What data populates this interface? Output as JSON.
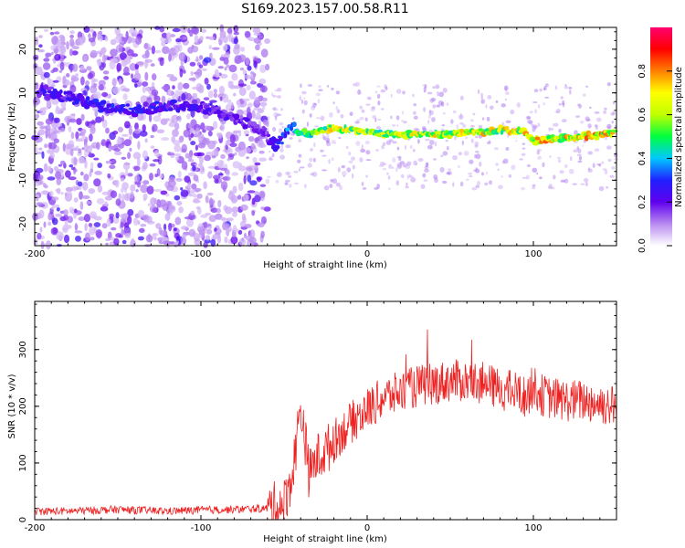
{
  "title": "S169.2023.157.00.58.R11",
  "top_panel": {
    "xlabel": "Height of straight line (km)",
    "ylabel": "Frequency (Hz)",
    "x_ticks": [
      "-200",
      "-100",
      "0",
      "100"
    ],
    "y_ticks": [
      "20",
      "10",
      "0",
      "-10",
      "-20"
    ],
    "colorbar": {
      "label": "Normalized spectral amplitude",
      "ticks": [
        "0.0",
        "0.2",
        "0.4",
        "0.6",
        "0.8"
      ],
      "colormap": [
        "#ffffff",
        "#b88af0",
        "#6000ee",
        "#2020ff",
        "#00c8ff",
        "#00ff40",
        "#c0ff00",
        "#ffff00",
        "#ff8000",
        "#ff0000",
        "#ff0070"
      ]
    }
  },
  "bottom_panel": {
    "xlabel": "Height of straight line (km)",
    "ylabel": "SNR (10 * v/v)",
    "x_ticks": [
      "-200",
      "-100",
      "0",
      "100"
    ],
    "y_ticks": [
      "0",
      "100",
      "200",
      "300"
    ]
  },
  "chart_data": [
    {
      "type": "heatmap",
      "title": "S169.2023.157.00.58.R11",
      "xlabel": "Height of straight line (km)",
      "ylabel": "Frequency (Hz)",
      "xlim": [
        -200,
        150
      ],
      "ylim": [
        -25,
        25
      ],
      "zlabel": "Normalized spectral amplitude",
      "zlim": [
        0,
        1
      ],
      "ridge_frequency": {
        "x": [
          -195,
          -180,
          -160,
          -140,
          -120,
          -100,
          -80,
          -65,
          -55,
          -45,
          -35,
          -20,
          0,
          20,
          50,
          80,
          95,
          100,
          150
        ],
        "y": [
          10.5,
          9,
          7,
          6,
          7,
          7,
          4,
          2,
          -2,
          2,
          0.5,
          2,
          1,
          0.5,
          0.5,
          1.5,
          1,
          -1,
          0.8
        ]
      },
      "ridge_amplitude": {
        "x": [
          -195,
          -150,
          -100,
          -60,
          -40,
          -20,
          0,
          50,
          100,
          150
        ],
        "y": [
          0.25,
          0.3,
          0.25,
          0.2,
          0.5,
          0.75,
          0.65,
          0.7,
          0.75,
          0.8
        ]
      }
    },
    {
      "type": "line",
      "xlabel": "Height of straight line (km)",
      "ylabel": "SNR (10 * v/v)",
      "xlim": [
        -200,
        150
      ],
      "ylim": [
        0,
        385
      ],
      "series": [
        {
          "color": "#ee2020",
          "x": [
            -200,
            -180,
            -150,
            -120,
            -100,
            -80,
            -60,
            -50,
            -45,
            -42,
            -40,
            -38,
            -35,
            -30,
            -25,
            -20,
            -10,
            0,
            10,
            20,
            30,
            40,
            50,
            60,
            70,
            80,
            90,
            95,
            100,
            105,
            110,
            120,
            130,
            140,
            150
          ],
          "y": [
            15,
            15,
            18,
            15,
            17,
            18,
            20,
            28,
            80,
            150,
            200,
            160,
            80,
            110,
            120,
            140,
            170,
            195,
            215,
            225,
            235,
            240,
            245,
            245,
            240,
            230,
            225,
            215,
            235,
            220,
            215,
            210,
            210,
            205,
            200
          ]
        }
      ]
    }
  ]
}
